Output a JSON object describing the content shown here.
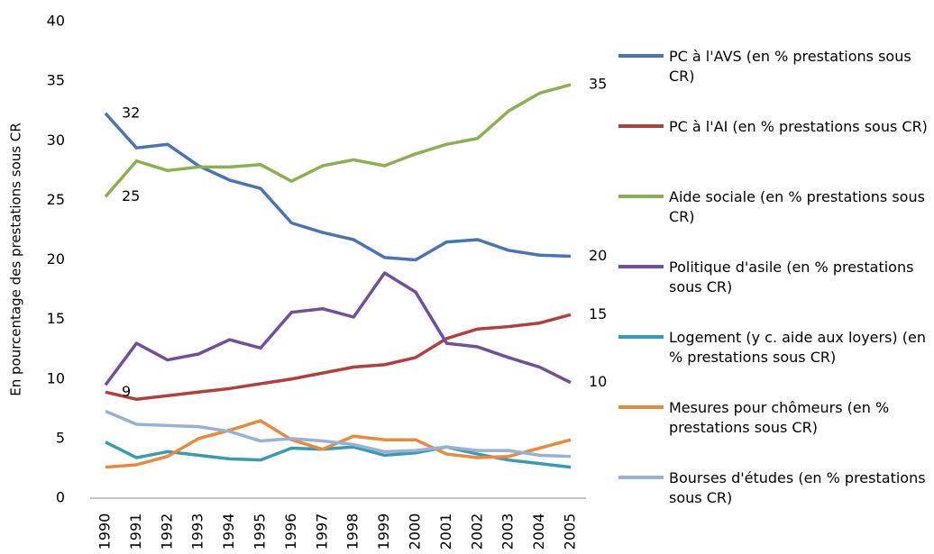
{
  "chart_data": {
    "type": "line",
    "y_label": "En pourcentage des prestations sous CR",
    "categories": [
      "1990",
      "1991",
      "1992",
      "1993",
      "1994",
      "1995",
      "1996",
      "1997",
      "1998",
      "1999",
      "2000",
      "2001",
      "2002",
      "2003",
      "2004",
      "2005"
    ],
    "ylim": [
      0,
      40
    ],
    "yticks": [
      0,
      5,
      10,
      15,
      20,
      25,
      30,
      35,
      40
    ],
    "grid": false,
    "series": [
      {
        "name": "PC à l'AVS (en % prestations sous CR)",
        "color": "#4a74b0",
        "values": [
          32.3,
          29.4,
          29.7,
          27.9,
          26.7,
          26.0,
          23.1,
          22.3,
          21.7,
          20.2,
          20.0,
          21.5,
          21.7,
          20.8,
          20.4,
          20.3
        ],
        "value_labels": [
          "32",
          null,
          null,
          null,
          null,
          null,
          null,
          null,
          null,
          null,
          null,
          null,
          null,
          null,
          null,
          "20"
        ]
      },
      {
        "name": "PC à l'AI (en % prestations sous CR)",
        "color": "#b0403c",
        "values": [
          8.9,
          8.3,
          8.6,
          8.9,
          9.2,
          9.6,
          10.0,
          10.5,
          11.0,
          11.2,
          11.8,
          13.4,
          14.2,
          14.4,
          14.7,
          15.4
        ],
        "value_labels": [
          "9",
          null,
          null,
          null,
          null,
          null,
          null,
          null,
          null,
          null,
          null,
          null,
          null,
          null,
          null,
          "15"
        ]
      },
      {
        "name": "Aide sociale (en % prestations sous CR)",
        "color": "#8cb050",
        "values": [
          25.3,
          28.3,
          27.5,
          27.8,
          27.8,
          28.0,
          26.6,
          27.9,
          28.4,
          27.9,
          28.9,
          29.7,
          30.2,
          32.5,
          34.0,
          34.7
        ],
        "value_labels": [
          "25",
          null,
          null,
          null,
          null,
          null,
          null,
          null,
          null,
          null,
          null,
          null,
          null,
          null,
          null,
          "35"
        ]
      },
      {
        "name": "Politique d'asile (en % prestations sous CR)",
        "color": "#71509a",
        "values": [
          9.5,
          13.0,
          11.6,
          12.1,
          13.3,
          12.6,
          15.6,
          15.9,
          15.2,
          18.9,
          17.3,
          13.0,
          12.7,
          11.8,
          11.0,
          9.7
        ],
        "value_labels": [
          null,
          null,
          null,
          null,
          null,
          null,
          null,
          null,
          null,
          null,
          null,
          null,
          null,
          null,
          null,
          "10"
        ]
      },
      {
        "name": "Logement (y c. aide aux loyers) (en % prestations sous CR)",
        "color": "#3a9bb0",
        "values": [
          4.7,
          3.4,
          3.9,
          3.6,
          3.3,
          3.2,
          4.2,
          4.1,
          4.3,
          3.6,
          3.8,
          4.3,
          3.7,
          3.2,
          2.9,
          2.6
        ]
      },
      {
        "name": "Mesures pour chômeurs (en % prestations sous CR)",
        "color": "#e88a3c",
        "values": [
          2.6,
          2.8,
          3.5,
          5.0,
          5.7,
          6.5,
          4.9,
          4.1,
          5.2,
          4.9,
          4.9,
          3.7,
          3.4,
          3.5,
          4.2,
          4.9
        ]
      },
      {
        "name": "Bourses d'études (en % prestations sous CR)",
        "color": "#97b2d6",
        "values": [
          7.3,
          6.2,
          6.1,
          6.0,
          5.6,
          4.8,
          5.0,
          4.8,
          4.5,
          3.9,
          4.0,
          4.3,
          4.0,
          4.0,
          3.6,
          3.5
        ]
      }
    ]
  }
}
